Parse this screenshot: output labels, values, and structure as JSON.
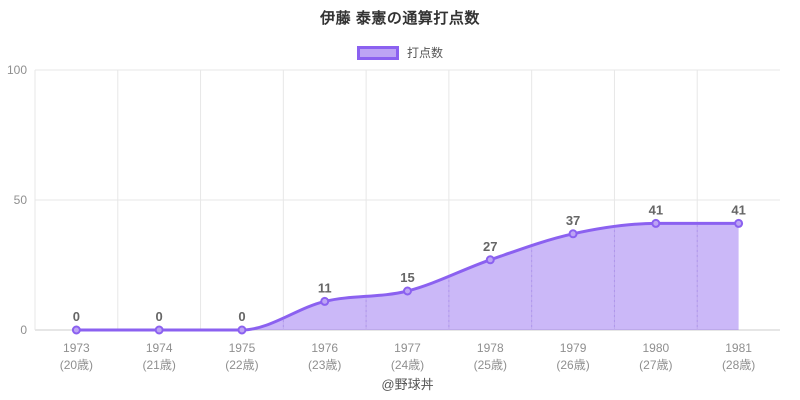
{
  "title": "伊藤 泰憲の通算打点数",
  "legend": {
    "label": "打点数"
  },
  "footer": "@野球丼",
  "colors": {
    "line": "#8b61f0",
    "fill": "rgba(139,97,240,0.45)",
    "marker_fill": "#bda4f4",
    "grid": "#e7e7e7",
    "zero_axis": "#cccccc",
    "tick_text": "#8f8f8f",
    "data_label": "#666666",
    "title_text": "#333333",
    "inner_dash": "#8b61f0"
  },
  "chart_data": {
    "type": "area",
    "title": "伊藤 泰憲の通算打点数",
    "series": [
      {
        "name": "打点数",
        "values": [
          0,
          0,
          0,
          11,
          15,
          27,
          37,
          41,
          41
        ]
      }
    ],
    "categories": [
      "1973",
      "1974",
      "1975",
      "1976",
      "1977",
      "1978",
      "1979",
      "1980",
      "1981"
    ],
    "category_sublabels": [
      "(20歳)",
      "(21歳)",
      "(22歳)",
      "(23歳)",
      "(24歳)",
      "(25歳)",
      "(26歳)",
      "(27歳)",
      "(28歳)"
    ],
    "ylim": [
      0,
      100
    ],
    "yticks": [
      0,
      50,
      100
    ],
    "grid": true,
    "legend_position": "top",
    "annotation": "@野球丼"
  }
}
